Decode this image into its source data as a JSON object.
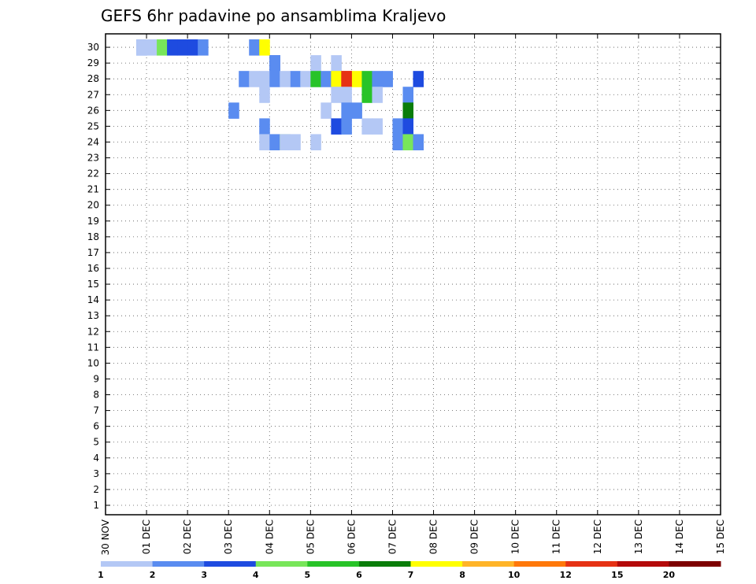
{
  "chart_data": {
    "type": "heatmap",
    "title": "GEFS 6hr padavine po ansamblima Kraljevo",
    "xlabel": "",
    "ylabel": "",
    "y_categories": [
      "1",
      "2",
      "3",
      "4",
      "5",
      "6",
      "7",
      "8",
      "9",
      "10",
      "11",
      "12",
      "13",
      "14",
      "15",
      "16",
      "17",
      "18",
      "19",
      "20",
      "21",
      "22",
      "23",
      "24",
      "25",
      "26",
      "27",
      "28",
      "29",
      "30"
    ],
    "x_tick_labels": [
      "30 NOV",
      "01 DEC",
      "02 DEC",
      "03 DEC",
      "04 DEC",
      "05 DEC",
      "06 DEC",
      "07 DEC",
      "08 DEC",
      "09 DEC",
      "10 DEC",
      "11 DEC",
      "12 DEC",
      "13 DEC",
      "14 DEC",
      "15 DEC"
    ],
    "x_range_days": [
      0,
      15
    ],
    "time_step_hours": 6,
    "grid": "dotted",
    "colorbar": {
      "labels": [
        "1",
        "2",
        "3",
        "4",
        "5",
        "6",
        "7",
        "8",
        "10",
        "12",
        "15",
        "20"
      ],
      "colors": [
        "#b4c8f5",
        "#5a8cf0",
        "#1e4be0",
        "#78e65a",
        "#28c328",
        "#0a7d0a",
        "#ffff00",
        "#ffb428",
        "#ff780a",
        "#e63214",
        "#b40a0a",
        "#7d0000"
      ]
    },
    "cells_format": "[ensemble_member, time_step_index (6h steps from 30 NOV 00Z), color_class_index (0=1 .. 11=20)]",
    "cells": [
      [
        30,
        3,
        1
      ],
      [
        30,
        3,
        0
      ],
      [
        30,
        4,
        0
      ],
      [
        30,
        5,
        3
      ],
      [
        30,
        6,
        2
      ],
      [
        30,
        7,
        2
      ],
      [
        30,
        8,
        2
      ],
      [
        30,
        9,
        1
      ],
      [
        30,
        14,
        1
      ],
      [
        30,
        15,
        6
      ],
      [
        29,
        16,
        2
      ],
      [
        29,
        16,
        1
      ],
      [
        29,
        16,
        1
      ],
      [
        29,
        20,
        0
      ],
      [
        29,
        22,
        0
      ],
      [
        28,
        13,
        1
      ],
      [
        28,
        14,
        0
      ],
      [
        28,
        18,
        1
      ],
      [
        28,
        19,
        0
      ],
      [
        28,
        15,
        0
      ],
      [
        28,
        16,
        1
      ],
      [
        28,
        17,
        0
      ],
      [
        28,
        20,
        4
      ],
      [
        28,
        21,
        1
      ],
      [
        28,
        22,
        6
      ],
      [
        28,
        23,
        9
      ],
      [
        28,
        24,
        6
      ],
      [
        28,
        25,
        4
      ],
      [
        28,
        26,
        1
      ],
      [
        28,
        27,
        1
      ],
      [
        28,
        30,
        2
      ],
      [
        28,
        23,
        9
      ],
      [
        27,
        15,
        0
      ],
      [
        27,
        22,
        0
      ],
      [
        27,
        23,
        0
      ],
      [
        27,
        25,
        4
      ],
      [
        27,
        26,
        0
      ],
      [
        27,
        29,
        1
      ],
      [
        26,
        12,
        1
      ],
      [
        26,
        21,
        0
      ],
      [
        26,
        23,
        1
      ],
      [
        26,
        24,
        1
      ],
      [
        26,
        29,
        5
      ],
      [
        25,
        15,
        1
      ],
      [
        25,
        22,
        2
      ],
      [
        25,
        23,
        1
      ],
      [
        25,
        25,
        0
      ],
      [
        25,
        26,
        0
      ],
      [
        25,
        28,
        1
      ],
      [
        25,
        29,
        2
      ],
      [
        24,
        15,
        0
      ],
      [
        24,
        16,
        1
      ],
      [
        24,
        17,
        3
      ],
      [
        24,
        17,
        0
      ],
      [
        24,
        18,
        0
      ],
      [
        24,
        20,
        0
      ],
      [
        24,
        28,
        1
      ],
      [
        24,
        29,
        3
      ],
      [
        24,
        30,
        1
      ]
    ]
  }
}
